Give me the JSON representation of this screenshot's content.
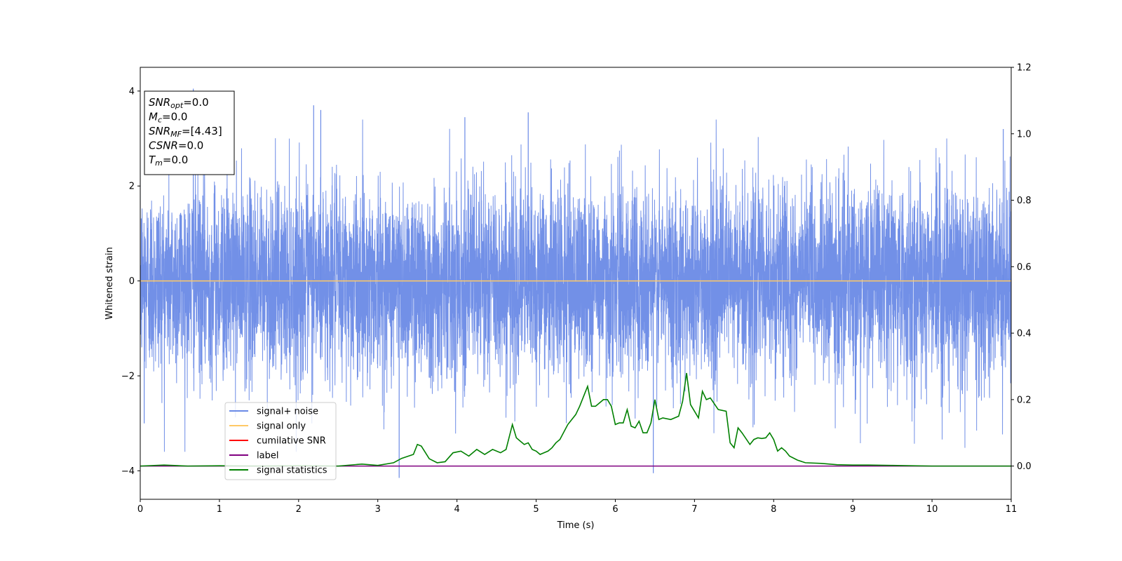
{
  "chart_data": {
    "type": "line",
    "title": "",
    "xlabel": "Time (s)",
    "ylabel": "Whitened strain",
    "y2label": "",
    "xlim": [
      0,
      11
    ],
    "ylim": [
      -4.6,
      4.5
    ],
    "y2lim": [
      -0.1,
      1.2
    ],
    "xticks": [
      0,
      1,
      2,
      3,
      4,
      5,
      6,
      7,
      8,
      9,
      10,
      11
    ],
    "yticks": [
      -4,
      -2,
      0,
      2,
      4
    ],
    "y2ticks": [
      0.0,
      0.2,
      0.4,
      0.6,
      0.8,
      1.0,
      1.2
    ],
    "y2tick_labels": [
      "0.0",
      "0.2",
      "0.4",
      "0.6",
      "0.8",
      "1.0",
      "1.2"
    ],
    "grid": false,
    "legend_position": "lower-left",
    "legend": [
      {
        "label": "signal+ noise",
        "color": "#6a8ae6"
      },
      {
        "label": "signal only",
        "color": "#ffc966"
      },
      {
        "label": "cumilative SNR",
        "color": "#ff0000"
      },
      {
        "label": "label",
        "color": "#800080"
      },
      {
        "label": "signal statistics",
        "color": "#008000"
      }
    ],
    "annotation": [
      {
        "symbol": "SNR",
        "sub": "opt",
        "value": "=0.0"
      },
      {
        "symbol": "M",
        "sub": "c",
        "value": "=0.0"
      },
      {
        "symbol": "SNR",
        "sub": "MF",
        "value": "=[4.43]"
      },
      {
        "symbol": "CSNR",
        "sub": "",
        "value": "=0.0"
      },
      {
        "symbol": "T",
        "sub": "m",
        "value": "=0.0"
      }
    ],
    "series": [
      {
        "name": "signal+ noise",
        "axis": "left",
        "color": "#6a8ae6",
        "description_values": {
          "mean": 0.0,
          "std": 1.0,
          "peaks": [
            [
              0.67,
              4.05
            ],
            [
              2.19,
              3.7
            ],
            [
              2.28,
              3.6
            ],
            [
              4.1,
              3.45
            ],
            [
              4.9,
              3.55
            ],
            [
              10.9,
              3.2
            ],
            [
              3.27,
              -4.15
            ],
            [
              6.48,
              -4.05
            ],
            [
              0.05,
              -3.0
            ]
          ]
        }
      },
      {
        "name": "signal only",
        "axis": "left",
        "color": "#ffc966",
        "x": [
          0,
          11
        ],
        "y": [
          0,
          0
        ]
      },
      {
        "name": "label",
        "axis": "right",
        "color": "#800080",
        "x": [
          0,
          11
        ],
        "y": [
          0,
          0
        ]
      },
      {
        "name": "signal statistics",
        "axis": "right",
        "color": "#008000",
        "x": [
          0,
          0.3,
          0.6,
          1.0,
          1.5,
          2.0,
          2.5,
          2.8,
          3.0,
          3.2,
          3.3,
          3.45,
          3.5,
          3.55,
          3.65,
          3.75,
          3.85,
          3.95,
          4.05,
          4.15,
          4.25,
          4.35,
          4.45,
          4.55,
          4.62,
          4.7,
          4.75,
          4.8,
          4.85,
          4.9,
          4.95,
          5.0,
          5.05,
          5.1,
          5.15,
          5.2,
          5.25,
          5.3,
          5.4,
          5.5,
          5.55,
          5.6,
          5.65,
          5.7,
          5.75,
          5.8,
          5.85,
          5.9,
          5.95,
          6.0,
          6.05,
          6.1,
          6.15,
          6.2,
          6.25,
          6.3,
          6.35,
          6.4,
          6.45,
          6.5,
          6.55,
          6.6,
          6.7,
          6.8,
          6.85,
          6.9,
          6.95,
          7.05,
          7.1,
          7.15,
          7.2,
          7.3,
          7.4,
          7.45,
          7.5,
          7.55,
          7.6,
          7.7,
          7.75,
          7.8,
          7.85,
          7.9,
          7.95,
          8.0,
          8.05,
          8.1,
          8.15,
          8.2,
          8.3,
          8.4,
          8.6,
          8.8,
          9.0,
          9.2,
          9.5,
          10.0,
          11.0
        ],
        "y": [
          0.0,
          0.003,
          0.0,
          0.001,
          0.0,
          0.001,
          0.0,
          0.006,
          0.002,
          0.01,
          0.023,
          0.035,
          0.065,
          0.06,
          0.022,
          0.01,
          0.013,
          0.04,
          0.045,
          0.03,
          0.05,
          0.035,
          0.05,
          0.04,
          0.05,
          0.125,
          0.085,
          0.075,
          0.065,
          0.07,
          0.05,
          0.045,
          0.035,
          0.04,
          0.045,
          0.055,
          0.07,
          0.08,
          0.125,
          0.155,
          0.18,
          0.21,
          0.24,
          0.18,
          0.18,
          0.19,
          0.2,
          0.2,
          0.18,
          0.125,
          0.13,
          0.13,
          0.17,
          0.12,
          0.115,
          0.135,
          0.1,
          0.1,
          0.13,
          0.2,
          0.14,
          0.145,
          0.14,
          0.15,
          0.195,
          0.28,
          0.185,
          0.145,
          0.225,
          0.2,
          0.205,
          0.17,
          0.165,
          0.07,
          0.055,
          0.115,
          0.1,
          0.065,
          0.08,
          0.085,
          0.083,
          0.085,
          0.1,
          0.08,
          0.045,
          0.055,
          0.045,
          0.03,
          0.018,
          0.01,
          0.008,
          0.004,
          0.003,
          0.003,
          0.002,
          0.0,
          0.0
        ]
      }
    ]
  }
}
